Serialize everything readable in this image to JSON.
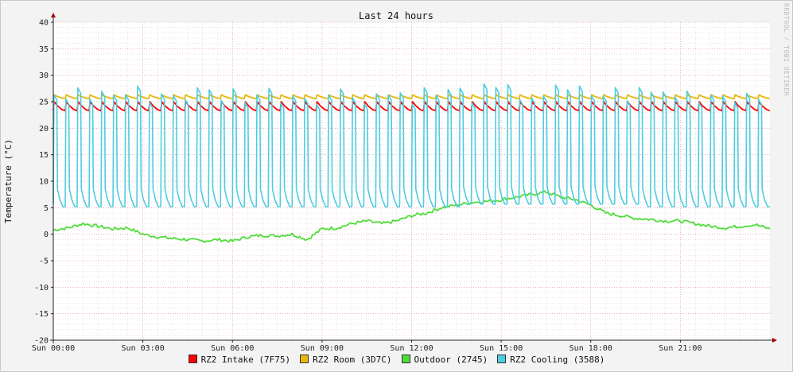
{
  "chart_data": {
    "type": "line",
    "title": "Last 24 hours",
    "ylabel": "Temperature (°C)",
    "xlabel": "",
    "watermark": "RRDTOOL / TOBI OETIKER",
    "ylim": [
      -20,
      40
    ],
    "xlim": [
      0,
      24
    ],
    "y_ticks": [
      40,
      35,
      30,
      25,
      20,
      15,
      10,
      5,
      0,
      -5,
      -10,
      -15,
      -20
    ],
    "x_ticks": [
      {
        "hour": 0,
        "label": "Sun 00:00"
      },
      {
        "hour": 3,
        "label": "Sun 03:00"
      },
      {
        "hour": 6,
        "label": "Sun 06:00"
      },
      {
        "hour": 9,
        "label": "Sun 09:00"
      },
      {
        "hour": 12,
        "label": "Sun 12:00"
      },
      {
        "hour": 15,
        "label": "Sun 15:00"
      },
      {
        "hour": 18,
        "label": "Sun 18:00"
      },
      {
        "hour": 21,
        "label": "Sun 21:00"
      }
    ],
    "grid": true,
    "legend_position": "bottom",
    "series": [
      {
        "name": "RZ2 Intake (7F75)",
        "color": "#ff0000",
        "pattern": "sawtooth",
        "cycle_hours": 0.4,
        "low": 23.3,
        "high": 25.0,
        "x": [
          0,
          3,
          6,
          9,
          12,
          15,
          18,
          21,
          24
        ],
        "y": [
          24.0,
          24.0,
          24.0,
          24.0,
          24.0,
          24.0,
          24.0,
          24.0,
          24.0
        ]
      },
      {
        "name": "RZ2 Room (3D7C)",
        "color": "#e8b70d",
        "pattern": "sawtooth",
        "cycle_hours": 0.4,
        "low": 25.6,
        "high": 26.3,
        "x": [
          0,
          3,
          6,
          9,
          12,
          15,
          18,
          21,
          24
        ],
        "y": [
          26.0,
          26.0,
          26.0,
          26.0,
          26.0,
          26.0,
          26.0,
          26.0,
          26.0
        ]
      },
      {
        "name": "Outdoor (2745)",
        "color": "#4fdc3a",
        "pattern": "line",
        "x": [
          0,
          0.5,
          1,
          1.5,
          2,
          2.5,
          3,
          3.5,
          4,
          4.5,
          5,
          5.5,
          6,
          6.5,
          7,
          7.5,
          8,
          8.5,
          9,
          9.5,
          10,
          10.5,
          11,
          11.5,
          12,
          12.5,
          13,
          13.5,
          14,
          14.5,
          15,
          15.5,
          16,
          16.5,
          17,
          17.5,
          18,
          18.5,
          19,
          19.5,
          20,
          20.5,
          21,
          21.5,
          22,
          22.5,
          23,
          23.5,
          24
        ],
        "y": [
          0.8,
          1.2,
          2.0,
          1.5,
          1.0,
          1.2,
          0.0,
          -0.5,
          -0.8,
          -1.0,
          -1.3,
          -1.0,
          -1.3,
          -0.5,
          -0.2,
          -0.3,
          0.0,
          -1.0,
          1.0,
          1.2,
          2.0,
          2.5,
          2.0,
          2.5,
          3.5,
          4.0,
          5.0,
          5.5,
          6.0,
          6.2,
          6.5,
          7.0,
          7.5,
          8.0,
          7.0,
          6.5,
          5.5,
          4.0,
          3.5,
          3.0,
          2.8,
          2.5,
          2.5,
          2.0,
          1.5,
          1.2,
          1.5,
          1.8,
          1.0
        ]
      },
      {
        "name": "RZ2 Cooling (3588)",
        "color": "#4dcde0",
        "pattern": "pulse",
        "cycle_hours": 0.4,
        "low": 5.2,
        "high": 26.5,
        "x": [
          0,
          3,
          6,
          9,
          12,
          15,
          18,
          21,
          24
        ],
        "y": [
          5.5,
          5.5,
          5.5,
          5.5,
          5.5,
          6.0,
          6.0,
          5.5,
          5.5
        ]
      }
    ]
  }
}
